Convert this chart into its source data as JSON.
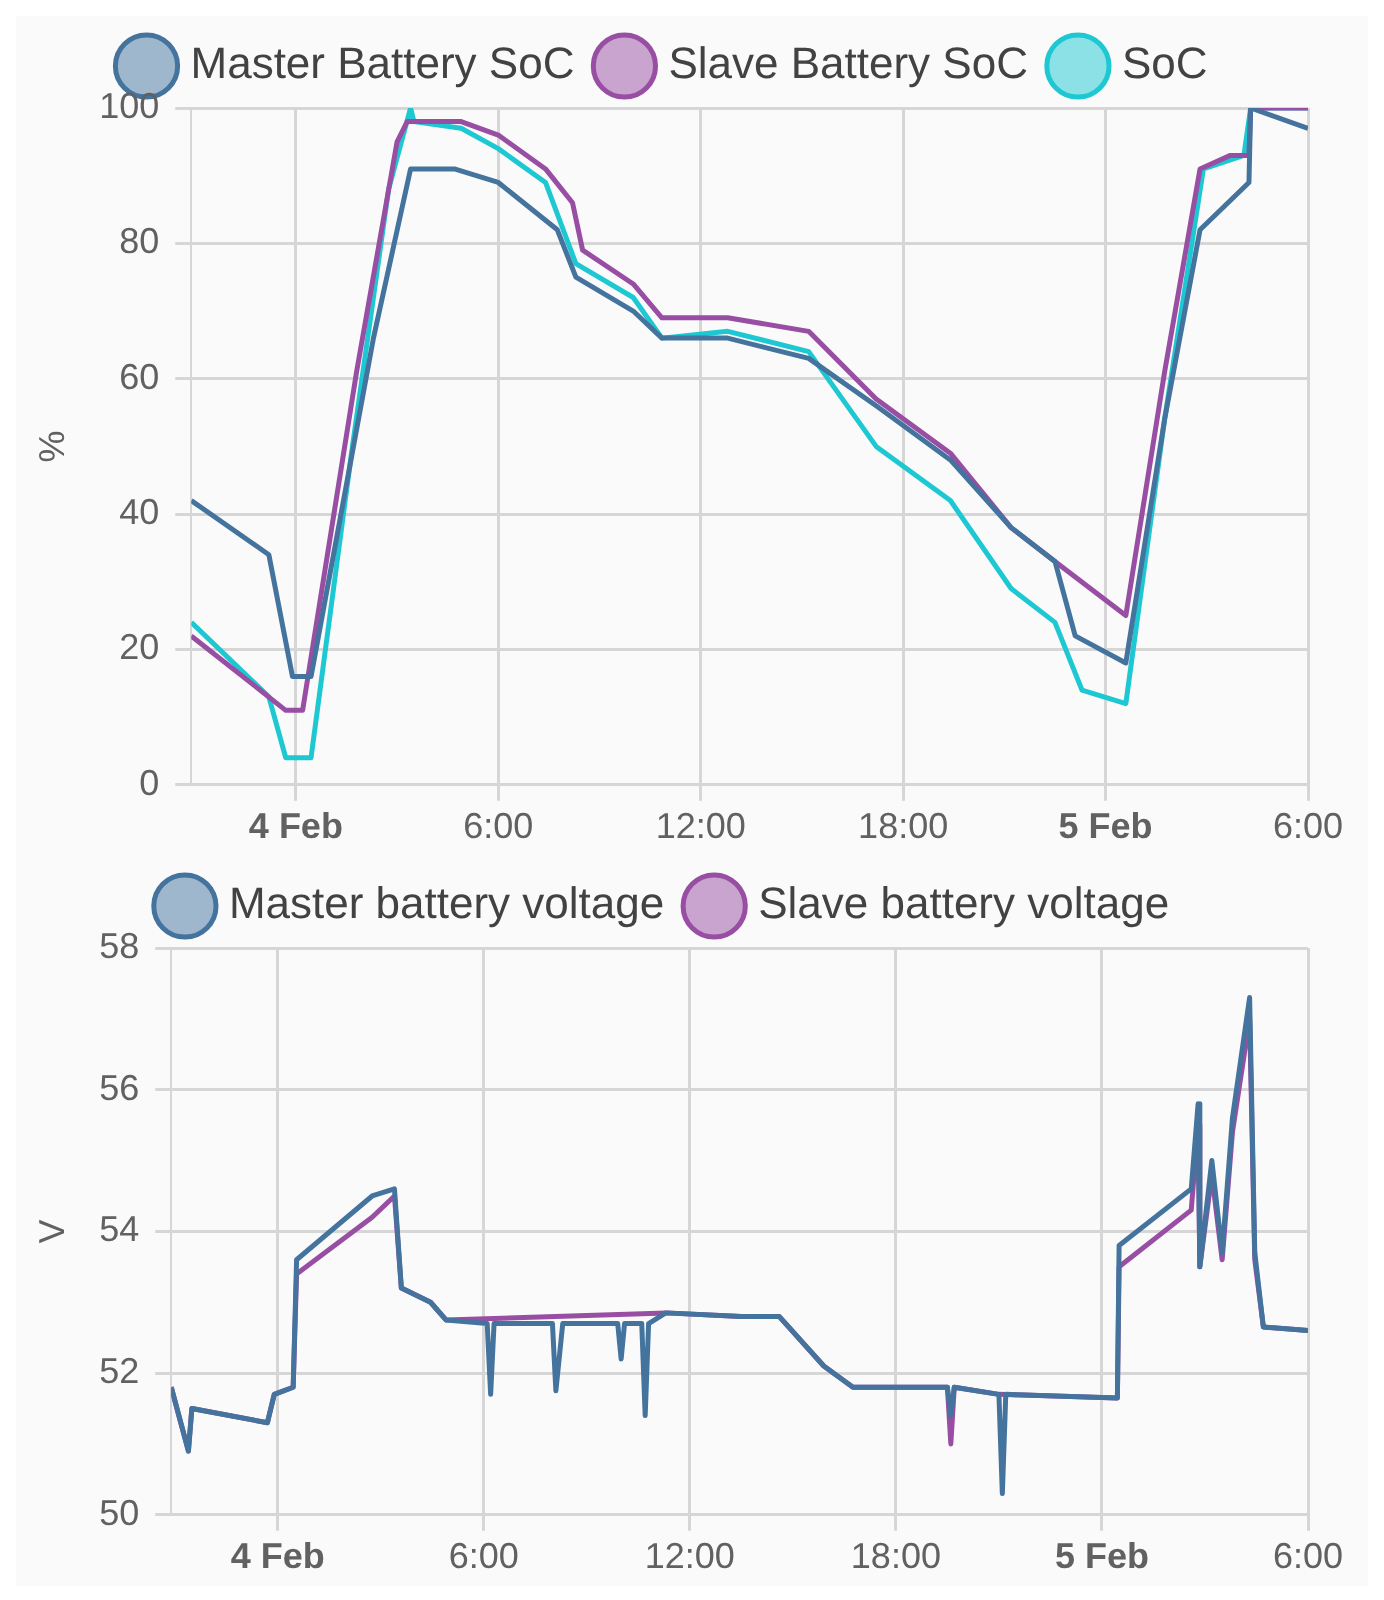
{
  "chart_data": [
    {
      "type": "line",
      "ylabel": "%",
      "legend": "top",
      "grid": true,
      "marker": "none",
      "line_style": "solid",
      "xlim": [
        "--02-03T20:54",
        "--02-05T06:00"
      ],
      "xticks": [
        {
          "value": "--02-04",
          "label": "4 Feb"
        },
        {
          "value": "--02-04T06:00",
          "label": "6:00"
        },
        {
          "value": "--02-04T12:00",
          "label": "12:00"
        },
        {
          "value": "--02-04T18:00",
          "label": "18:00"
        },
        {
          "value": "--02-05",
          "label": "5 Feb"
        },
        {
          "value": "--02-05T06:00",
          "label": "6:00"
        }
      ],
      "ylim": [
        0,
        100
      ],
      "yticks": [
        0,
        20,
        40,
        60,
        80,
        100
      ],
      "series": [
        {
          "name": "Master Battery SoC",
          "color": "#44739e",
          "x": [
            "--02-03T20:54",
            "--02-03T23:12",
            "--02-03T23:54",
            "--02-04T00:27",
            "--02-04T02:18",
            "--02-04T03:24",
            "--02-04T04:42",
            "--02-04T06:00",
            "--02-04T07:45",
            "--02-04T08:18",
            "--02-04T10:00",
            "--02-04T10:51",
            "--02-04T12:48",
            "--02-04T15:12",
            "--02-04T17:12",
            "--02-04T19:24",
            "--02-04T21:12",
            "--02-04T22:30",
            "--02-04T23:06",
            "--02-05T00:36",
            "--02-05T01:45",
            "--02-05T02:48",
            "--02-05T04:15",
            "--02-05T04:18",
            "--02-05T06:00"
          ],
          "values": [
            42,
            34,
            16,
            16,
            66,
            91,
            91,
            89,
            82,
            75,
            70,
            66,
            66,
            63,
            56,
            48,
            38,
            33,
            22,
            18,
            54,
            82,
            89,
            100,
            97
          ]
        },
        {
          "name": "Slave Battery SoC",
          "color": "#984ea3",
          "x": [
            "--02-03T20:54",
            "--02-03T23:42",
            "--02-04T00:12",
            "--02-04T01:48",
            "--02-04T03:00",
            "--02-04T03:18",
            "--02-04T04:54",
            "--02-04T06:00",
            "--02-04T07:24",
            "--02-04T08:12",
            "--02-04T08:30",
            "--02-04T10:00",
            "--02-04T10:51",
            "--02-04T12:48",
            "--02-04T15:12",
            "--02-04T17:12",
            "--02-04T19:24",
            "--02-04T21:12",
            "--02-04T22:30",
            "--02-05T00:36",
            "--02-05T01:45",
            "--02-05T02:48",
            "--02-05T03:42",
            "--02-05T04:15",
            "--02-05T04:18",
            "--02-05T06:00"
          ],
          "values": [
            22,
            11,
            11,
            61,
            95,
            98,
            98,
            96,
            91,
            86,
            79,
            74,
            69,
            69,
            67,
            57,
            49,
            38,
            33,
            25,
            61,
            91,
            93,
            93,
            100,
            100
          ]
        },
        {
          "name": "SoC",
          "color": "#1ec8d2",
          "x": [
            "--02-03T20:54",
            "--02-03T23:12",
            "--02-03T23:42",
            "--02-04T00:27",
            "--02-04T01:39",
            "--02-04T02:45",
            "--02-04T03:24",
            "--02-04T03:30",
            "--02-04T04:54",
            "--02-04T06:00",
            "--02-04T07:24",
            "--02-04T08:18",
            "--02-04T10:00",
            "--02-04T10:51",
            "--02-04T12:48",
            "--02-04T15:12",
            "--02-04T17:12",
            "--02-04T19:24",
            "--02-04T21:12",
            "--02-04T22:30",
            "--02-04T23:18",
            "--02-05T00:36",
            "--02-05T01:45",
            "--02-05T02:54",
            "--02-05T04:06",
            "--02-05T04:18",
            "--02-05T06:00"
          ],
          "values": [
            24,
            13,
            4,
            4,
            49,
            88,
            100,
            98,
            97,
            94,
            89,
            77,
            72,
            66,
            67,
            64,
            50,
            42,
            29,
            24,
            14,
            12,
            54,
            91,
            93,
            100,
            100
          ]
        }
      ]
    },
    {
      "type": "line",
      "ylabel": "V",
      "legend": "top",
      "grid": true,
      "marker": "none",
      "line_style": "solid",
      "xlim": [
        "--02-03T20:54",
        "--02-05T06:00"
      ],
      "xticks": [
        {
          "value": "--02-04",
          "label": "4 Feb"
        },
        {
          "value": "--02-04T06:00",
          "label": "6:00"
        },
        {
          "value": "--02-04T12:00",
          "label": "12:00"
        },
        {
          "value": "--02-04T18:00",
          "label": "18:00"
        },
        {
          "value": "--02-05",
          "label": "5 Feb"
        },
        {
          "value": "--02-05T06:00",
          "label": "6:00"
        }
      ],
      "ylim": [
        50,
        58
      ],
      "yticks": [
        50,
        52,
        54,
        56,
        58
      ],
      "series": [
        {
          "name": "Master battery voltage",
          "color": "#44739e",
          "x": [
            "--02-03T20:54",
            "--02-03T21:24",
            "--02-03T21:30",
            "--02-03T23:42",
            "--02-03T23:54",
            "--02-04T00:27",
            "--02-04T00:33",
            "--02-04T02:45",
            "--02-04T03:24",
            "--02-04T03:36",
            "--02-04T04:27",
            "--02-04T04:54",
            "--02-04T06:06",
            "--02-04T06:12",
            "--02-04T06:18",
            "--02-04T08:00",
            "--02-04T08:06",
            "--02-04T08:18",
            "--02-04T09:54",
            "--02-04T10:00",
            "--02-04T10:06",
            "--02-04T10:36",
            "--02-04T10:42",
            "--02-04T10:48",
            "--02-04T11:18",
            "--02-04T13:30",
            "--02-04T14:36",
            "--02-04T15:54",
            "--02-04T16:45",
            "--02-04T19:30",
            "--02-04T19:36",
            "--02-04T19:42",
            "--02-04T21:00",
            "--02-04T21:06",
            "--02-04T21:12",
            "--02-05T00:27",
            "--02-05T00:30",
            "--02-05T02:36",
            "--02-05T02:48",
            "--02-05T02:51",
            "--02-05T03:12",
            "--02-05T03:30",
            "--02-05T03:48",
            "--02-05T04:18",
            "--02-05T04:27",
            "--02-05T04:42",
            "--02-05T06:00"
          ],
          "values": [
            51.8,
            50.9,
            51.5,
            51.3,
            51.7,
            51.8,
            53.6,
            54.5,
            54.6,
            53.2,
            53.0,
            52.75,
            52.7,
            51.7,
            52.7,
            52.7,
            51.75,
            52.7,
            52.7,
            52.2,
            52.7,
            52.7,
            51.4,
            52.7,
            52.85,
            52.8,
            52.8,
            52.1,
            51.8,
            51.8,
            51.4,
            51.8,
            51.7,
            50.3,
            51.7,
            51.65,
            53.8,
            54.6,
            55.8,
            53.5,
            55.0,
            53.7,
            55.6,
            57.3,
            53.7,
            52.65,
            52.6
          ]
        },
        {
          "name": "Slave battery voltage",
          "color": "#984ea3",
          "x": [
            "--02-03T20:54",
            "--02-03T21:24",
            "--02-03T21:30",
            "--02-03T23:42",
            "--02-03T23:54",
            "--02-04T00:27",
            "--02-04T00:33",
            "--02-04T02:45",
            "--02-04T03:24",
            "--02-04T03:36",
            "--02-04T04:27",
            "--02-04T04:54",
            "--02-04T11:18",
            "--02-04T13:30",
            "--02-04T14:36",
            "--02-04T15:54",
            "--02-04T16:45",
            "--02-04T19:30",
            "--02-04T19:36",
            "--02-04T19:42",
            "--02-04T21:00",
            "--02-05T00:27",
            "--02-05T00:30",
            "--02-05T02:36",
            "--02-05T02:48",
            "--02-05T02:51",
            "--02-05T03:12",
            "--02-05T03:30",
            "--02-05T03:48",
            "--02-05T04:18",
            "--02-05T04:27",
            "--02-05T04:42",
            "--02-05T06:00"
          ],
          "values": [
            51.8,
            50.9,
            51.5,
            51.3,
            51.7,
            51.8,
            53.4,
            54.2,
            54.5,
            53.2,
            53.0,
            52.75,
            52.85,
            52.8,
            52.8,
            52.1,
            51.8,
            51.8,
            51.0,
            51.8,
            51.7,
            51.65,
            53.5,
            54.3,
            55.5,
            53.5,
            54.8,
            53.6,
            55.4,
            57.0,
            53.6,
            52.65,
            52.6
          ]
        }
      ]
    }
  ]
}
